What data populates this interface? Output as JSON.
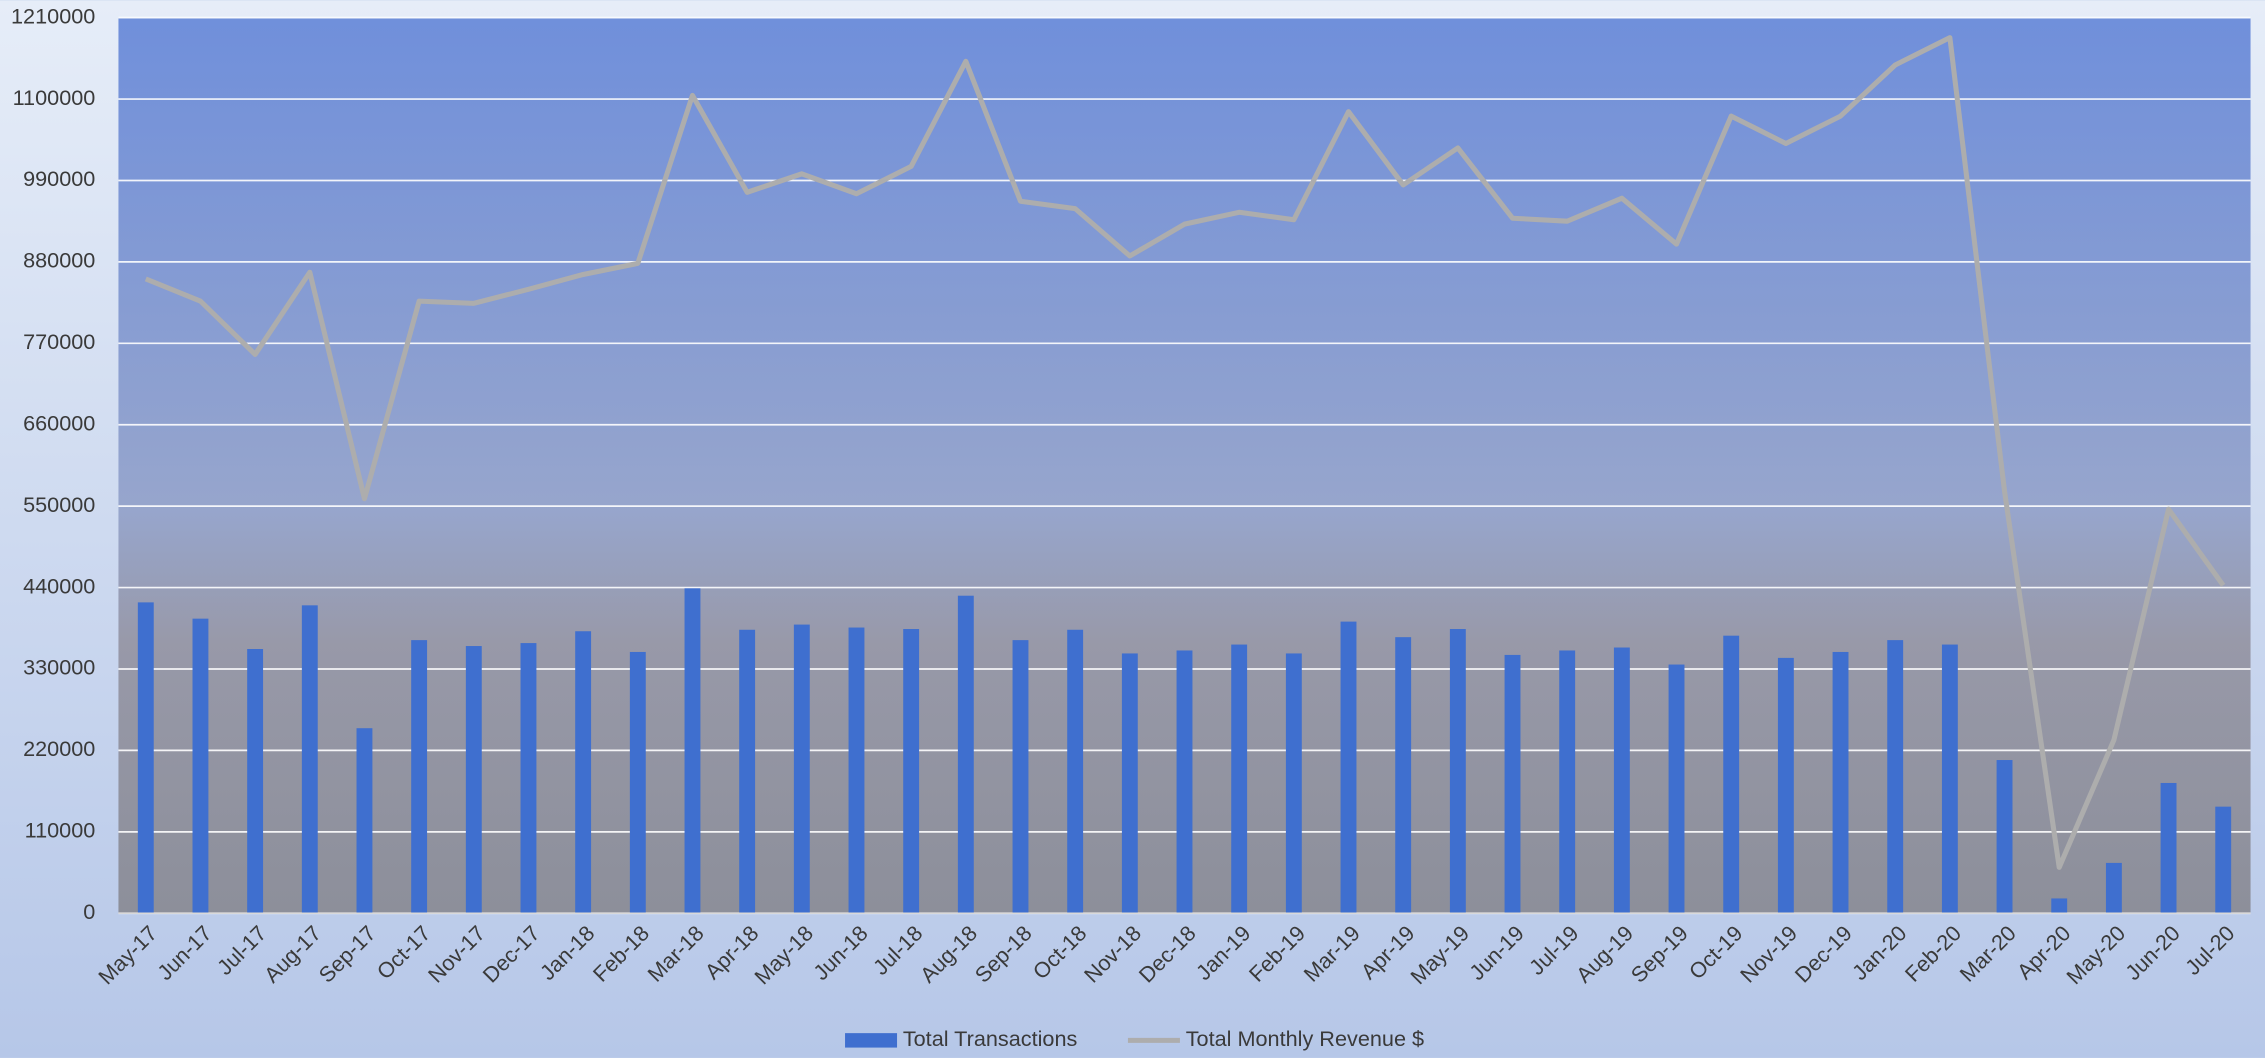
{
  "chart_data": {
    "type": "bar-line",
    "categories": [
      "May-17",
      "Jun-17",
      "Jul-17",
      "Aug-17",
      "Sep-17",
      "Oct-17",
      "Nov-17",
      "Dec-17",
      "Jan-18",
      "Feb-18",
      "Mar-18",
      "Apr-18",
      "May-18",
      "Jun-18",
      "Jul-18",
      "Aug-18",
      "Sep-18",
      "Oct-18",
      "Nov-18",
      "Dec-18",
      "Jan-19",
      "Feb-19",
      "Mar-19",
      "Apr-19",
      "May-19",
      "Jun-19",
      "Jul-19",
      "Aug-19",
      "Sep-19",
      "Oct-19",
      "Nov-19",
      "Dec-19",
      "Jan-20",
      "Feb-20",
      "Mar-20",
      "Apr-20",
      "May-20",
      "Jun-20",
      "Jul-20"
    ],
    "series": [
      {
        "name": "Total Transactions",
        "type": "bar",
        "color": "#3f6fcf",
        "values": [
          420000,
          398000,
          357000,
          416000,
          250000,
          369000,
          361000,
          365000,
          381000,
          353000,
          439000,
          383000,
          390000,
          386000,
          384000,
          429000,
          369000,
          383000,
          351000,
          355000,
          363000,
          351000,
          394000,
          373000,
          384000,
          349000,
          355000,
          359000,
          336000,
          375000,
          345000,
          353000,
          369000,
          363000,
          207000,
          20000,
          68000,
          176000,
          144000
        ]
      },
      {
        "name": "Total Monthly Revenue $",
        "type": "line",
        "color": "#adadad",
        "values": [
          857000,
          827000,
          755000,
          866000,
          560000,
          827000,
          824000,
          843000,
          863000,
          878000,
          1105000,
          974000,
          999000,
          972000,
          1009000,
          1151000,
          962000,
          952000,
          888000,
          931000,
          947000,
          937000,
          1083000,
          984000,
          1034000,
          939000,
          935000,
          966000,
          904000,
          1077000,
          1040000,
          1077000,
          1146000,
          1183000,
          570000,
          62000,
          234000,
          546000,
          443000
        ]
      }
    ],
    "ylim": [
      0,
      1210000
    ],
    "yticks": [
      0,
      110000,
      220000,
      330000,
      440000,
      550000,
      660000,
      770000,
      880000,
      990000,
      1100000,
      1210000
    ],
    "grid": true,
    "legend": "bottom"
  }
}
